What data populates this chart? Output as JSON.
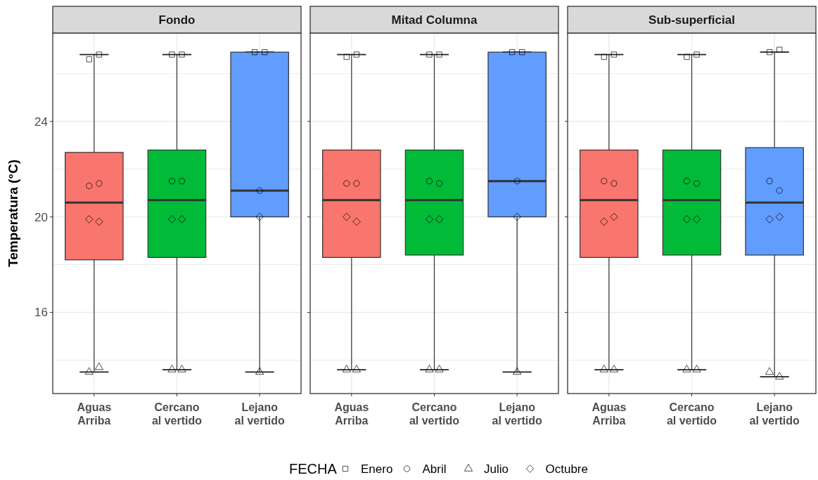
{
  "chart_data": [
    {
      "type": "box",
      "title": "Fondo",
      "ylabel": "Temperatura (°C)",
      "legend_title": "FECHA",
      "legend": "bottom",
      "grid": true,
      "categories": [
        "Aguas Arriba",
        "Cercano al vertido",
        "Lejano al vertido"
      ],
      "colors": [
        "#f8766d",
        "#00ba38",
        "#619cff"
      ],
      "ylim": [
        12.6,
        27.7
      ],
      "yticks": [
        {
          "value": 14,
          "label": null
        },
        16,
        {
          "value": 18,
          "label": null
        },
        20,
        {
          "value": 22,
          "label": null
        },
        24,
        {
          "value": 26,
          "label": null
        }
      ],
      "boxes": [
        {
          "low": 13.5,
          "q1": 18.2,
          "median": 20.6,
          "q3": 22.7,
          "high": 26.8
        },
        {
          "low": 13.6,
          "q1": 18.3,
          "median": 20.7,
          "q3": 22.8,
          "high": 26.8
        },
        {
          "low": 13.5,
          "q1": 20.0,
          "median": 21.1,
          "q3": 26.9,
          "high": 26.9
        }
      ],
      "series": [
        {
          "name": "Enero",
          "type": "scatter",
          "marker": "square",
          "color": "#000000",
          "x": [
            "Aguas Arriba",
            "Aguas Arriba",
            "Cercano al vertido",
            "Cercano al vertido",
            "Lejano al vertido",
            "Lejano al vertido"
          ],
          "values": [
            26.6,
            26.8,
            26.8,
            26.8,
            26.9,
            26.9
          ]
        },
        {
          "name": "Abril",
          "type": "scatter",
          "marker": "circle",
          "color": "#000000",
          "x": [
            "Aguas Arriba",
            "Aguas Arriba",
            "Cercano al vertido",
            "Cercano al vertido",
            "Lejano al vertido"
          ],
          "values": [
            21.3,
            21.4,
            21.5,
            21.5,
            21.1
          ]
        },
        {
          "name": "Julio",
          "type": "scatter",
          "marker": "triangle",
          "color": "#000000",
          "x": [
            "Aguas Arriba",
            "Aguas Arriba",
            "Cercano al vertido",
            "Cercano al vertido",
            "Lejano al vertido"
          ],
          "values": [
            13.5,
            13.7,
            13.6,
            13.6,
            13.5
          ]
        },
        {
          "name": "Octubre",
          "type": "scatter",
          "marker": "diamond",
          "color": "#000000",
          "x": [
            "Aguas Arriba",
            "Aguas Arriba",
            "Cercano al vertido",
            "Cercano al vertido",
            "Lejano al vertido"
          ],
          "values": [
            19.9,
            19.8,
            19.9,
            19.9,
            20.0
          ]
        }
      ]
    },
    {
      "type": "box",
      "title": "Mitad Columna",
      "grid": true,
      "tick_labels": "x",
      "categories": [
        "Aguas Arriba",
        "Cercano al vertido",
        "Lejano al vertido"
      ],
      "colors": [
        "#f8766d",
        "#00ba38",
        "#619cff"
      ],
      "ylim": [
        12.6,
        27.7
      ],
      "yticks": [
        {
          "value": 14,
          "label": null
        },
        16,
        {
          "value": 18,
          "label": null
        },
        20,
        {
          "value": 22,
          "label": null
        },
        24,
        {
          "value": 26,
          "label": null
        }
      ],
      "boxes": [
        {
          "low": 13.6,
          "q1": 18.3,
          "median": 20.7,
          "q3": 22.8,
          "high": 26.8
        },
        {
          "low": 13.6,
          "q1": 18.4,
          "median": 20.7,
          "q3": 22.8,
          "high": 26.8
        },
        {
          "low": 13.5,
          "q1": 20.0,
          "median": 21.5,
          "q3": 26.9,
          "high": 26.9
        }
      ],
      "series": [
        {
          "type": "scatter",
          "marker": "square",
          "color": "#000000",
          "x": [
            "Aguas Arriba",
            "Aguas Arriba",
            "Cercano al vertido",
            "Cercano al vertido",
            "Lejano al vertido",
            "Lejano al vertido"
          ],
          "values": [
            26.7,
            26.8,
            26.8,
            26.8,
            26.9,
            26.9
          ]
        },
        {
          "type": "scatter",
          "marker": "circle",
          "color": "#000000",
          "x": [
            "Aguas Arriba",
            "Aguas Arriba",
            "Cercano al vertido",
            "Cercano al vertido",
            "Lejano al vertido"
          ],
          "values": [
            21.4,
            21.4,
            21.5,
            21.4,
            21.5
          ]
        },
        {
          "type": "scatter",
          "marker": "triangle",
          "color": "#000000",
          "x": [
            "Aguas Arriba",
            "Aguas Arriba",
            "Cercano al vertido",
            "Cercano al vertido",
            "Lejano al vertido"
          ],
          "values": [
            13.6,
            13.6,
            13.6,
            13.6,
            13.5
          ]
        },
        {
          "type": "scatter",
          "marker": "diamond",
          "color": "#000000",
          "x": [
            "Aguas Arriba",
            "Aguas Arriba",
            "Cercano al vertido",
            "Cercano al vertido",
            "Lejano al vertido"
          ],
          "values": [
            20.0,
            19.8,
            19.9,
            19.9,
            20.0
          ]
        }
      ]
    },
    {
      "type": "box",
      "title": "Sub-superficial",
      "grid": true,
      "tick_labels": "x",
      "categories": [
        "Aguas Arriba",
        "Cercano al vertido",
        "Lejano al vertido"
      ],
      "colors": [
        "#f8766d",
        "#00ba38",
        "#619cff"
      ],
      "ylim": [
        12.6,
        27.7
      ],
      "yticks": [
        {
          "value": 14,
          "label": null
        },
        16,
        {
          "value": 18,
          "label": null
        },
        20,
        {
          "value": 22,
          "label": null
        },
        24,
        {
          "value": 26,
          "label": null
        }
      ],
      "boxes": [
        {
          "low": 13.6,
          "q1": 18.3,
          "median": 20.7,
          "q3": 22.8,
          "high": 26.8
        },
        {
          "low": 13.6,
          "q1": 18.4,
          "median": 20.7,
          "q3": 22.8,
          "high": 26.8
        },
        {
          "low": 13.3,
          "q1": 18.4,
          "median": 20.6,
          "q3": 22.9,
          "high": 26.9
        }
      ],
      "series": [
        {
          "type": "scatter",
          "marker": "square",
          "color": "#000000",
          "x": [
            "Aguas Arriba",
            "Aguas Arriba",
            "Cercano al vertido",
            "Cercano al vertido",
            "Lejano al vertido",
            "Lejano al vertido"
          ],
          "values": [
            26.7,
            26.8,
            26.7,
            26.8,
            26.9,
            27.0
          ]
        },
        {
          "type": "scatter",
          "marker": "circle",
          "color": "#000000",
          "x": [
            "Aguas Arriba",
            "Aguas Arriba",
            "Cercano al vertido",
            "Cercano al vertido",
            "Lejano al vertido",
            "Lejano al vertido"
          ],
          "values": [
            21.5,
            21.4,
            21.5,
            21.4,
            21.5,
            21.1
          ]
        },
        {
          "type": "scatter",
          "marker": "triangle",
          "color": "#000000",
          "x": [
            "Aguas Arriba",
            "Aguas Arriba",
            "Cercano al vertido",
            "Cercano al vertido",
            "Lejano al vertido",
            "Lejano al vertido"
          ],
          "values": [
            13.6,
            13.6,
            13.6,
            13.6,
            13.5,
            13.3
          ]
        },
        {
          "type": "scatter",
          "marker": "diamond",
          "color": "#000000",
          "x": [
            "Aguas Arriba",
            "Aguas Arriba",
            "Cercano al vertido",
            "Cercano al vertido",
            "Lejano al vertido",
            "Lejano al vertido"
          ],
          "values": [
            19.8,
            20.0,
            19.9,
            19.9,
            19.9,
            20.0
          ]
        }
      ]
    }
  ]
}
